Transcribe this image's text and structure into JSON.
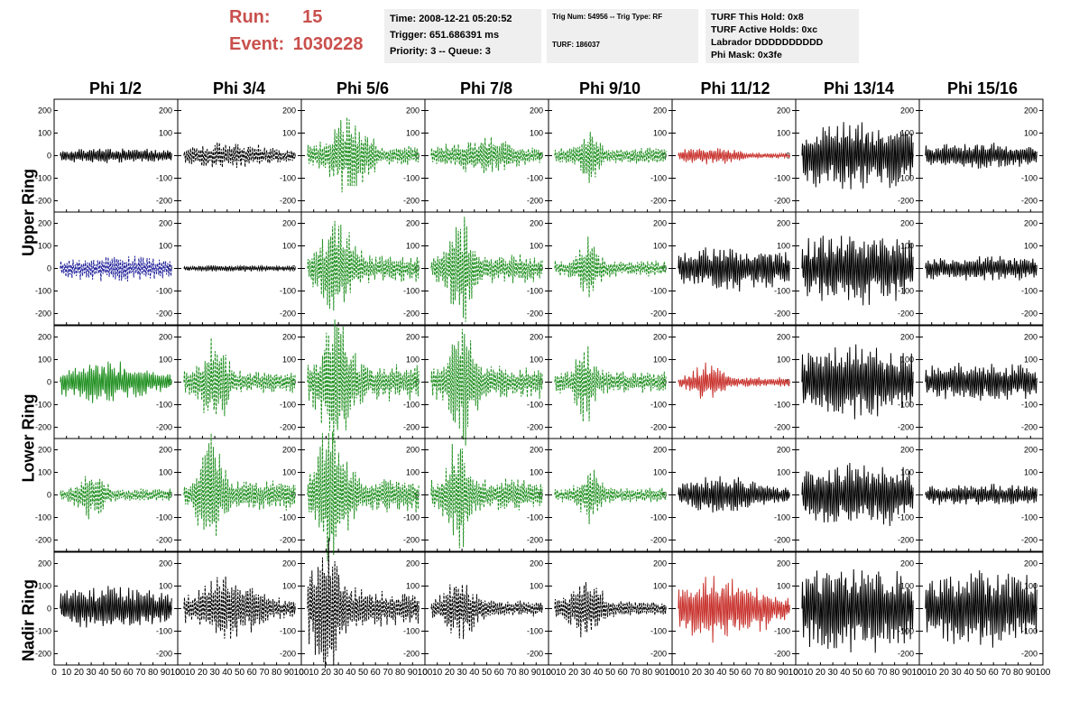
{
  "header": {
    "run_label": "Run:",
    "run_value": "15",
    "event_label": "Event:",
    "event_value": "1030228"
  },
  "info_box_1": {
    "time": "Time: 2008-12-21 05:20:52",
    "trigger": "Trigger: 651.686391 ms",
    "priority": "Priority: 3 -- Queue: 3"
  },
  "info_box_2": {
    "trig": "Trig Num: 54956 -- Trig Type: RF",
    "turf": "TURF: 186037"
  },
  "info_box_3": {
    "hold": "TURF This Hold: 0x8",
    "active": "TURF Active Holds: 0xc",
    "labrador": "Labrador DDDDDDDDDD",
    "mask": "Phi Mask: 0x3fe"
  },
  "columns": [
    "Phi 1/2",
    "Phi 3/4",
    "Phi 5/6",
    "Phi 7/8",
    "Phi 9/10",
    "Phi 11/12",
    "Phi 13/14",
    "Phi 15/16"
  ],
  "ring_labels": {
    "upper": "Upper Ring",
    "lower": "Lower Ring",
    "nadir": "Nadir Ring"
  },
  "colors": {
    "black": "#000000",
    "green": "#1f8f1f",
    "red": "#c8302b",
    "blue": "#1f1f9a",
    "header_red": "#c9504d"
  },
  "chart_data": {
    "type": "line",
    "xlim": [
      0,
      100
    ],
    "ylim": [
      -250,
      250
    ],
    "x_ticks": [
      "0",
      "10",
      "20",
      "30",
      "40",
      "50",
      "60",
      "70",
      "80",
      "90",
      "100"
    ],
    "y_ticks": [
      "200",
      "100",
      "0",
      "-100",
      "-200"
    ],
    "rows": [
      {
        "ring": "upper",
        "waveforms": [
          {
            "color": "black",
            "dashed": false,
            "amp": 25,
            "center": 50,
            "width": 60,
            "seed": 1
          },
          {
            "color": "black",
            "dashed": true,
            "amp": 45,
            "center": 40,
            "width": 40,
            "seed": 2
          },
          {
            "color": "green",
            "dashed": true,
            "amp": 120,
            "center": 38,
            "width": 18,
            "seed": 3
          },
          {
            "color": "green",
            "dashed": true,
            "amp": 60,
            "center": 45,
            "width": 35,
            "seed": 4
          },
          {
            "color": "green",
            "dashed": true,
            "amp": 100,
            "center": 33,
            "width": 8,
            "seed": 5
          },
          {
            "color": "red",
            "dashed": false,
            "amp": 30,
            "center": 30,
            "width": 25,
            "seed": 6
          },
          {
            "color": "black",
            "dashed": false,
            "amp": 110,
            "center": 50,
            "width": 80,
            "seed": 7
          },
          {
            "color": "black",
            "dashed": false,
            "amp": 40,
            "center": 50,
            "width": 80,
            "seed": 8
          }
        ]
      },
      {
        "ring": "upper",
        "waveforms": [
          {
            "color": "blue",
            "dashed": true,
            "amp": 40,
            "center": 50,
            "width": 60,
            "seed": 9
          },
          {
            "color": "black",
            "dashed": false,
            "amp": 10,
            "center": 50,
            "width": 60,
            "seed": 10
          },
          {
            "color": "green",
            "dashed": true,
            "amp": 170,
            "center": 28,
            "width": 14,
            "seed": 11
          },
          {
            "color": "green",
            "dashed": true,
            "amp": 180,
            "center": 30,
            "width": 10,
            "seed": 12
          },
          {
            "color": "green",
            "dashed": true,
            "amp": 100,
            "center": 32,
            "width": 9,
            "seed": 13
          },
          {
            "color": "black",
            "dashed": false,
            "amp": 70,
            "center": 50,
            "width": 60,
            "seed": 14
          },
          {
            "color": "black",
            "dashed": false,
            "amp": 110,
            "center": 50,
            "width": 80,
            "seed": 15
          },
          {
            "color": "black",
            "dashed": false,
            "amp": 40,
            "center": 50,
            "width": 80,
            "seed": 16
          }
        ]
      },
      {
        "ring": "lower",
        "waveforms": [
          {
            "color": "green",
            "dashed": false,
            "amp": 70,
            "center": 40,
            "width": 40,
            "seed": 17
          },
          {
            "color": "green",
            "dashed": true,
            "amp": 140,
            "center": 30,
            "width": 12,
            "seed": 18
          },
          {
            "color": "green",
            "dashed": true,
            "amp": 230,
            "center": 28,
            "width": 13,
            "seed": 19
          },
          {
            "color": "green",
            "dashed": true,
            "amp": 200,
            "center": 30,
            "width": 11,
            "seed": 20
          },
          {
            "color": "green",
            "dashed": true,
            "amp": 140,
            "center": 30,
            "width": 8,
            "seed": 21
          },
          {
            "color": "red",
            "dashed": false,
            "amp": 60,
            "center": 28,
            "width": 14,
            "seed": 22
          },
          {
            "color": "black",
            "dashed": false,
            "amp": 115,
            "center": 50,
            "width": 80,
            "seed": 23
          },
          {
            "color": "black",
            "dashed": false,
            "amp": 60,
            "center": 50,
            "width": 80,
            "seed": 24
          }
        ]
      },
      {
        "ring": "lower",
        "waveforms": [
          {
            "color": "green",
            "dashed": true,
            "amp": 80,
            "center": 30,
            "width": 12,
            "seed": 25
          },
          {
            "color": "green",
            "dashed": true,
            "amp": 190,
            "center": 27,
            "width": 10,
            "seed": 26
          },
          {
            "color": "green",
            "dashed": true,
            "amp": 220,
            "center": 23,
            "width": 14,
            "seed": 27
          },
          {
            "color": "green",
            "dashed": true,
            "amp": 200,
            "center": 27,
            "width": 9,
            "seed": 28
          },
          {
            "color": "green",
            "dashed": true,
            "amp": 90,
            "center": 33,
            "width": 9,
            "seed": 29
          },
          {
            "color": "black",
            "dashed": false,
            "amp": 60,
            "center": 40,
            "width": 40,
            "seed": 30
          },
          {
            "color": "black",
            "dashed": false,
            "amp": 100,
            "center": 50,
            "width": 80,
            "seed": 31
          },
          {
            "color": "black",
            "dashed": false,
            "amp": 35,
            "center": 50,
            "width": 80,
            "seed": 32
          }
        ]
      },
      {
        "ring": "nadir",
        "waveforms": [
          {
            "color": "black",
            "dashed": false,
            "amp": 70,
            "center": 50,
            "width": 70,
            "seed": 33
          },
          {
            "color": "black",
            "dashed": true,
            "amp": 100,
            "center": 40,
            "width": 30,
            "seed": 34
          },
          {
            "color": "black",
            "dashed": true,
            "amp": 220,
            "center": 20,
            "width": 14,
            "seed": 35
          },
          {
            "color": "black",
            "dashed": true,
            "amp": 100,
            "center": 28,
            "width": 14,
            "seed": 36
          },
          {
            "color": "black",
            "dashed": true,
            "amp": 100,
            "center": 30,
            "width": 14,
            "seed": 37
          },
          {
            "color": "red",
            "dashed": false,
            "amp": 110,
            "center": 40,
            "width": 40,
            "seed": 38
          },
          {
            "color": "black",
            "dashed": false,
            "amp": 140,
            "center": 50,
            "width": 80,
            "seed": 39
          },
          {
            "color": "black",
            "dashed": false,
            "amp": 120,
            "center": 50,
            "width": 80,
            "seed": 40
          }
        ]
      }
    ]
  }
}
